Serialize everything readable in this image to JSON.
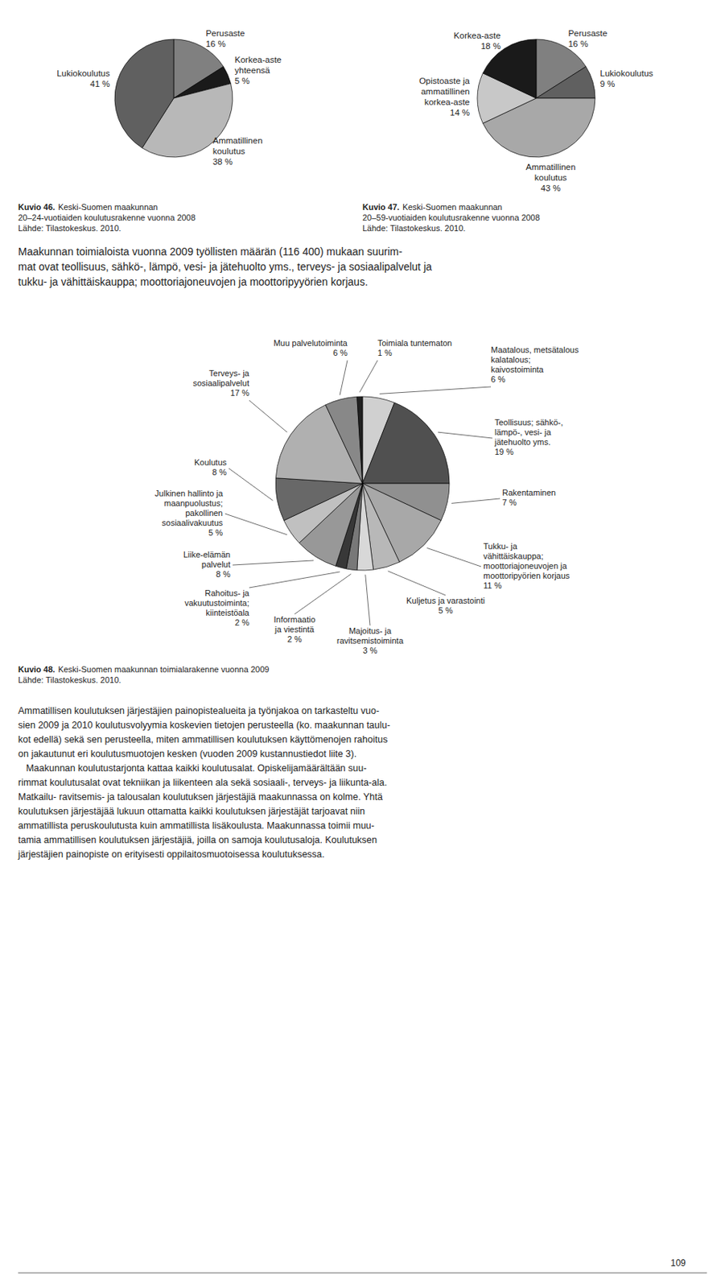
{
  "chart_data": [
    {
      "type": "pie",
      "title": "Kuvio 46.",
      "subtitle": "Keski-Suomen maakunnan\n20–24-vuotiaiden koulutusrakenne vuonna 2008",
      "annotations": [
        "Lähde: Tilastokeskus. 2010."
      ],
      "categories": [
        "Perusaste",
        "Korkea-aste\nyhteensä",
        "Ammatillinen\nkoulutus",
        "Lukiokoulutus"
      ],
      "values": [
        16,
        5,
        38,
        41
      ],
      "value_labels": [
        "16 %",
        "5 %",
        "38 %",
        "41 %"
      ],
      "colors": [
        "#808080",
        "#1a1a1a",
        "#b8b8b8",
        "#606060"
      ]
    },
    {
      "type": "pie",
      "title": "Kuvio 47.",
      "subtitle": "Keski-Suomen maakunnan\n20–59-vuotiaiden koulutusrakenne vuonna 2008",
      "annotations": [
        "Lähde: Tilastokeskus. 2010."
      ],
      "categories": [
        "Perusaste",
        "Lukiokoulutus",
        "Ammatillinen\nkoulutus",
        "Opistoaste ja\nammatillinen\nkorkea-aste",
        "Korkea-aste"
      ],
      "values": [
        16,
        9,
        43,
        14,
        18
      ],
      "value_labels": [
        "16 %",
        "9 %",
        "43 %",
        "14 %",
        "18 %"
      ],
      "colors": [
        "#808080",
        "#606060",
        "#a8a8a8",
        "#c8c8c8",
        "#1a1a1a"
      ]
    },
    {
      "type": "pie",
      "title": "Kuvio 48.",
      "subtitle": "Keski-Suomen maakunnan toimialarakenne vuonna 2009",
      "annotations": [
        "Lähde: Tilastokeskus. 2010."
      ],
      "categories": [
        "Maatalous, metsätalous\nkalatalous;\nkaivostoiminta",
        "Teollisuus; sähkö-,\nlämpö-, vesi- ja\njätehuolto yms.",
        "Rakentaminen",
        "Tukku- ja\nvähittäiskauppa;\nmoottoriajoneuvojen ja\nmoottoripyörien korjaus",
        "Kuljetus ja varastointi",
        "Majoitus- ja\nravitsemistoiminta",
        "Informaatio\nja viestintä",
        "Rahoitus- ja\nvakuutustoiminta;\nkiinteistöala",
        "Liike-elämän\npalvelut",
        "Julkinen hallinto ja\nmaanpuolustus;\npakollinen\nsosiaalivakuutus",
        "Koulutus",
        "Terveys- ja\nsosiaalipalvelut",
        "Muu palvelutoiminta",
        "Toimiala tuntematon"
      ],
      "values": [
        6,
        19,
        7,
        11,
        5,
        3,
        2,
        2,
        8,
        5,
        8,
        17,
        6,
        1
      ],
      "value_labels": [
        "6 %",
        "19 %",
        "7 %",
        "11 %",
        "5 %",
        "3 %",
        "2 %",
        "2 %",
        "8 %",
        "5 %",
        "8 %",
        "17 %",
        "6 %",
        "1 %"
      ],
      "colors": [
        "#d0d0d0",
        "#505050",
        "#909090",
        "#a8a8a8",
        "#b8b8b8",
        "#d8d8d8",
        "#787878",
        "#383838",
        "#989898",
        "#c0c0c0",
        "#686868",
        "#b0b0b0",
        "#888888",
        "#202020"
      ]
    }
  ],
  "page": {
    "text_blocks": [
      [
        "Maakunnan toimialoista vuonna 2009 työllisten määrän (116 400) mukaan suurim-",
        "mat ovat teollisuus, sähkö-, lämpö, vesi- ja jätehuolto yms., terveys- ja sosiaalipalvelut ja",
        "tukku- ja vähittäiskauppa; moottoriajoneuvojen ja moottoripyyörien korjaus."
      ],
      [
        "Ammatillisen koulutuksen järjestäjien painopistealueita ja työnjakoa on tarkasteltu vuo-",
        "sien 2009 ja 2010 koulutusvolyymia koskevien tietojen perusteella (ko. maakunnan taulu-",
        "kot edellä) sekä sen perusteella, miten ammatillisen koulutuksen käyttömenojen rahoitus",
        "on jakautunut eri koulutusmuotojen kesken (vuoden 2009 kustannustiedot liite 3).",
        "   Maakunnan koulutustarjonta kattaa kaikki koulutusalat. Opiskelijamäärältään suu-",
        "rimmat koulutusalat ovat tekniikan ja liikenteen ala sekä sosiaali-, terveys- ja liikunta-ala.",
        "Matkailu- ravitsemis- ja talousalan koulutuksen järjestäjiä maakunnassa on kolme. Yhtä",
        "koulutuksen järjestäjää lukuun ottamatta kaikki koulutuksen järjestäjät tarjoavat niin",
        "ammatillista peruskoulutusta kuin ammatillista lisäkoulusta. Maakunnassa toimii muu-",
        "tamia ammatillisen koulutuksen järjestäjiä, joilla on samoja koulutusaloja. Koulutuksen",
        "järjestäjien painopiste on erityisesti oppilaitosmuotoisessa koulutuksessa."
      ]
    ],
    "page_number": "109"
  }
}
